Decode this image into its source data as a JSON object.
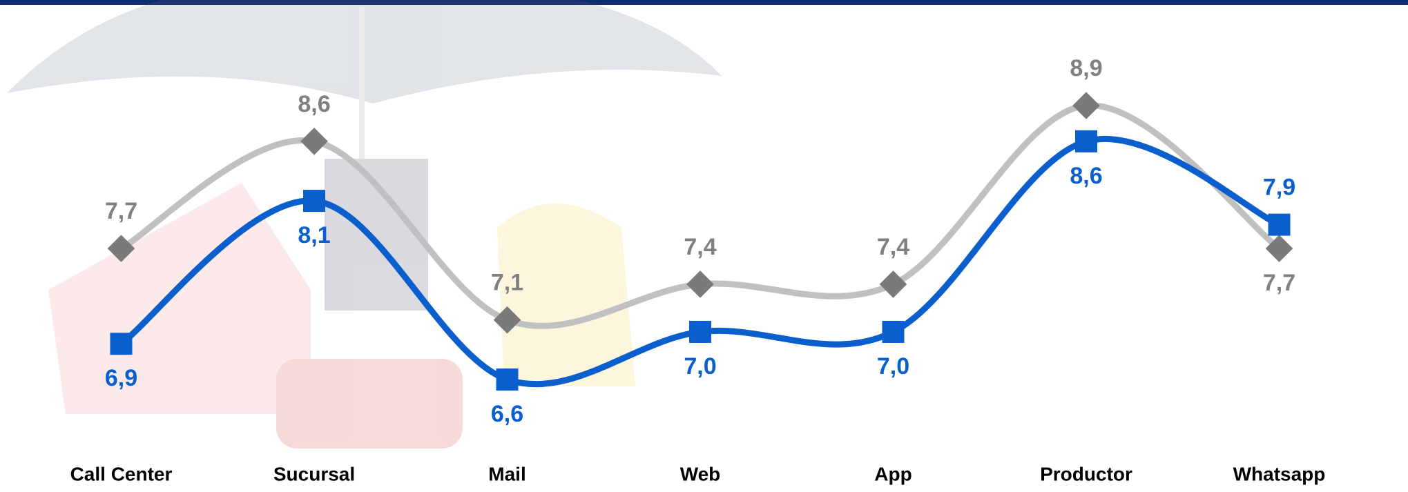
{
  "chart_data": {
    "type": "line",
    "categories": [
      "Call Center",
      "Sucursal",
      "Mail",
      "Web",
      "App",
      "Productor",
      "Whatsapp"
    ],
    "series": [
      {
        "color": "#c0c0c0",
        "marker_color": "#7a7a7a",
        "label_color": "#808080",
        "marker": "diamond",
        "values": [
          7.7,
          8.6,
          7.1,
          7.4,
          7.4,
          8.9,
          7.7
        ],
        "value_labels": [
          "7,7",
          "8,6",
          "7,1",
          "7,4",
          "7,4",
          "8,9",
          "7,7"
        ]
      },
      {
        "color": "#0a5fcc",
        "marker_color": "#0a5fcc",
        "label_color": "#0a5fcc",
        "marker": "square",
        "values": [
          6.9,
          8.1,
          6.6,
          7.0,
          7.0,
          8.6,
          7.9
        ],
        "value_labels": [
          "6,9",
          "8,1",
          "6,6",
          "7,0",
          "7,0",
          "8,6",
          "7,9"
        ]
      }
    ]
  }
}
